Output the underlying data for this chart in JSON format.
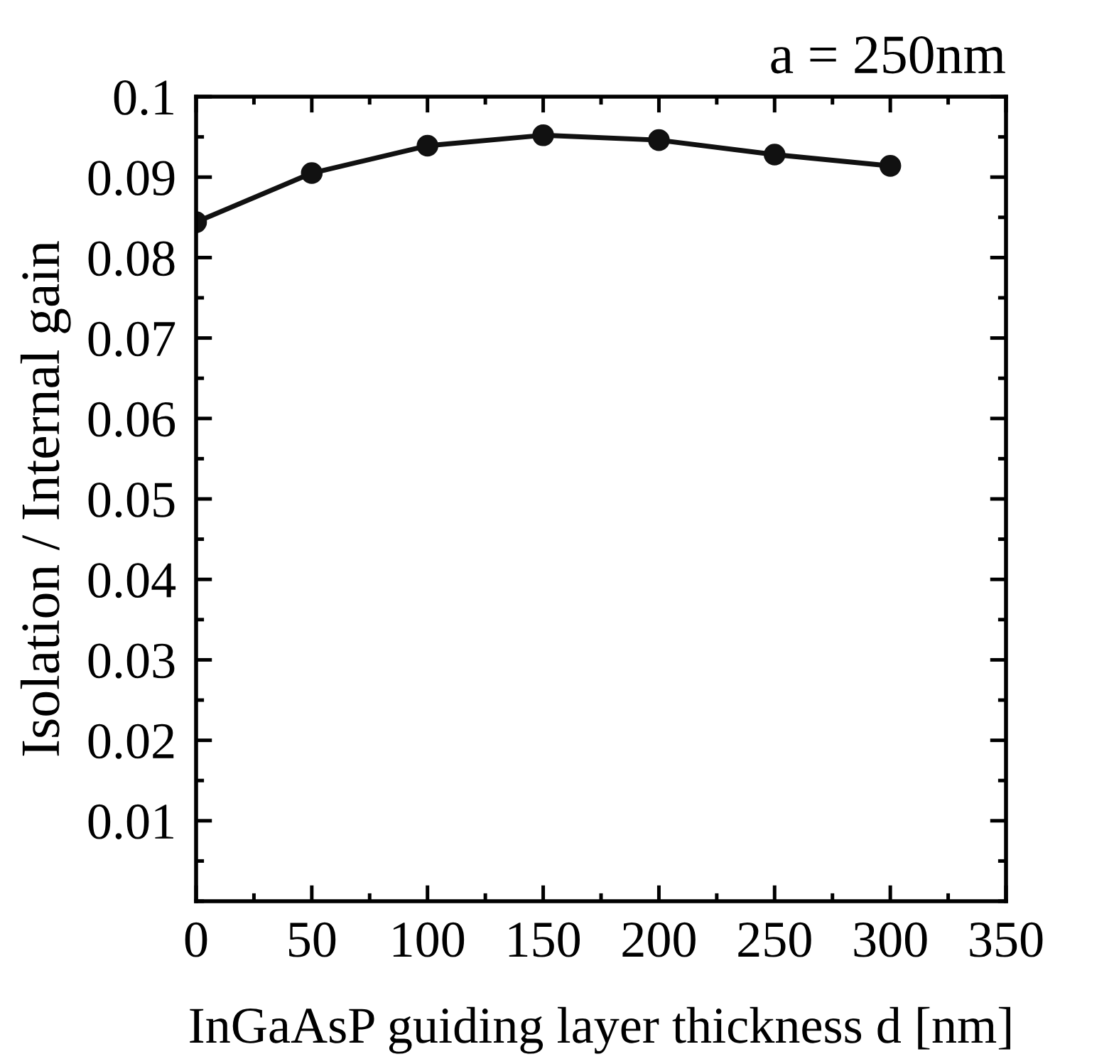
{
  "chart_data": {
    "type": "line",
    "title": "a = 250nm",
    "xlabel": "InGaAsP guiding layer thickness d [nm]",
    "ylabel": "Isolation / Internal gain",
    "x": [
      0,
      50,
      100,
      150,
      200,
      250,
      300
    ],
    "series": [
      {
        "color": "#111111",
        "values": [
          0.0844,
          0.0905,
          0.0939,
          0.0952,
          0.0946,
          0.0928,
          0.0914
        ]
      }
    ],
    "xlim": [
      0,
      350
    ],
    "xticks": [
      0,
      50,
      100,
      150,
      200,
      250,
      300,
      350
    ],
    "ylim": [
      0,
      0.1
    ],
    "yticks": [
      0.01,
      0.02,
      0.03,
      0.04,
      0.05,
      0.06,
      0.07,
      0.08,
      0.09,
      0.1
    ],
    "marker": "circle",
    "line_style": "solid",
    "grid": false,
    "legend": false
  }
}
